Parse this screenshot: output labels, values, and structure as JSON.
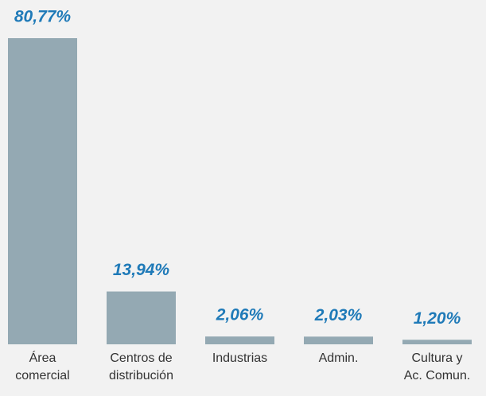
{
  "chart_data": {
    "type": "bar",
    "categories": [
      [
        "Área",
        "comercial"
      ],
      [
        "Centros de",
        "distribución"
      ],
      [
        "Industrias"
      ],
      [
        "Admin."
      ],
      [
        "Cultura y",
        "Ac. Comun."
      ]
    ],
    "values": [
      80.77,
      13.94,
      2.06,
      2.03,
      1.2
    ],
    "value_labels": [
      "80,77%",
      "13,94%",
      "2,06%",
      "2,03%",
      "1,20%"
    ],
    "color": "#94a9b3"
  }
}
